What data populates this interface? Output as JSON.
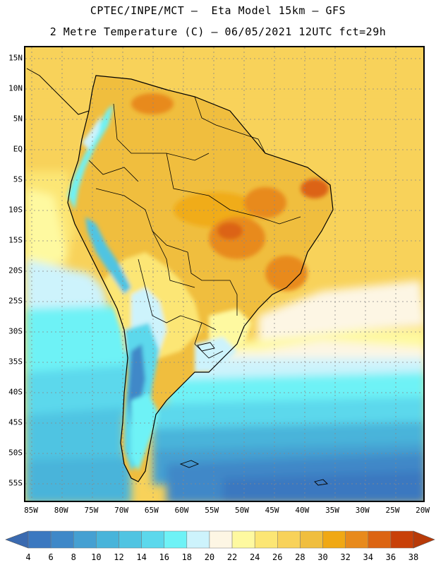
{
  "header": {
    "line1": "CPTEC/INPE/MCT –  Eta Model 15km – GFS",
    "line2": "2 Metre Temperature (C) – 06/05/2021 12UTC fct=29h"
  },
  "map": {
    "lat_labels": [
      "15N",
      "10N",
      "5N",
      "EQ",
      "5S",
      "10S",
      "15S",
      "20S",
      "25S",
      "30S",
      "35S",
      "40S",
      "45S",
      "50S",
      "55S"
    ],
    "lon_labels": [
      "85W",
      "80W",
      "75W",
      "70W",
      "65W",
      "60W",
      "55W",
      "50W",
      "45W",
      "40W",
      "35W",
      "30W",
      "25W",
      "20W"
    ]
  },
  "colorbar": {
    "labels": [
      "4",
      "6",
      "8",
      "10",
      "12",
      "14",
      "16",
      "18",
      "20",
      "22",
      "24",
      "26",
      "28",
      "30",
      "32",
      "34",
      "36",
      "38"
    ],
    "colors": [
      "#3b78c0",
      "#3f88c8",
      "#45a0d2",
      "#48b4da",
      "#50c4e2",
      "#5cd8ec",
      "#6ef2f6",
      "#cdf3fc",
      "#fdf6e4",
      "#fef9a0",
      "#fce674",
      "#f8d25a",
      "#f0be3e",
      "#f0a814",
      "#e88a1c",
      "#dc6412",
      "#c84008"
    ],
    "end_low": "#3a6ab0",
    "end_high": "#b83a08"
  }
}
